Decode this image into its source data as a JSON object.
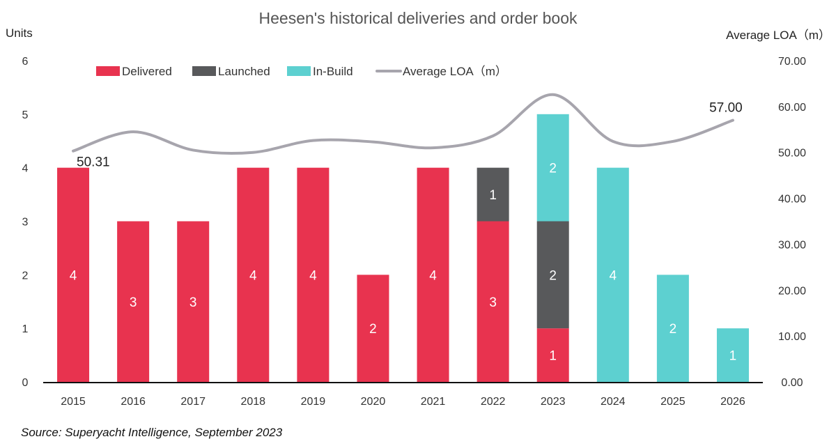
{
  "chart_data": {
    "type": "bar",
    "stacked": true,
    "title": "Heesen's historical deliveries and order book",
    "ylabel": "Units",
    "y2label": "Average LOA（m）",
    "ylim": [
      0,
      6
    ],
    "y2lim": [
      0,
      70
    ],
    "yticks": [
      "0",
      "1",
      "2",
      "3",
      "4",
      "5",
      "6"
    ],
    "y2ticks": [
      "0.00",
      "10.00",
      "20.00",
      "30.00",
      "40.00",
      "50.00",
      "60.00",
      "70.00"
    ],
    "categories": [
      "2015",
      "2016",
      "2017",
      "2018",
      "2019",
      "2020",
      "2021",
      "2022",
      "2023",
      "2024",
      "2025",
      "2026"
    ],
    "series": [
      {
        "name": "Delivered",
        "type": "bar",
        "color": "#e8334f",
        "values": [
          4,
          3,
          3,
          4,
          4,
          2,
          4,
          3,
          1,
          0,
          0,
          0
        ]
      },
      {
        "name": "Launched",
        "type": "bar",
        "color": "#58595b",
        "values": [
          0,
          0,
          0,
          0,
          0,
          0,
          0,
          1,
          2,
          0,
          0,
          0
        ]
      },
      {
        "name": "In-Build",
        "type": "bar",
        "color": "#5dd0d0",
        "values": [
          0,
          0,
          0,
          0,
          0,
          0,
          0,
          0,
          2,
          4,
          2,
          1
        ]
      },
      {
        "name": "Average LOA（m）",
        "type": "line",
        "axis": "right",
        "color": "#a7a5ad",
        "values": [
          50.31,
          54.5,
          50.5,
          50.0,
          52.6,
          52.3,
          51.0,
          53.6,
          62.6,
          52.4,
          52.4,
          57.0
        ]
      }
    ],
    "line_labels": [
      {
        "index": 0,
        "text": "50.31"
      },
      {
        "index": 11,
        "text": "57.00"
      }
    ],
    "legend": "top-left",
    "grid": false,
    "source": "Source: Superyacht Intelligence, September 2023"
  }
}
